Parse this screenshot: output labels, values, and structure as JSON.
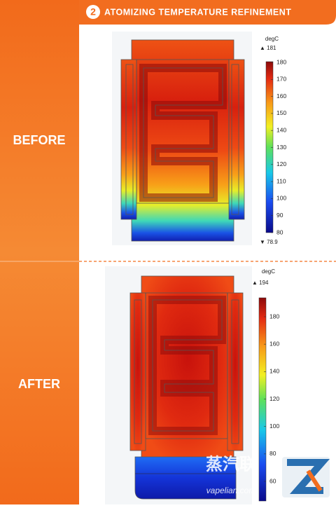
{
  "header": {
    "number": "2",
    "title": "ATOMIZING TEMPERATURE REFINEMENT"
  },
  "panels": [
    {
      "label": "BEFORE",
      "unit": "degC",
      "max": "▲ 181",
      "min": "▼ 78.9",
      "ticks": [
        180,
        170,
        160,
        150,
        140,
        130,
        120,
        110,
        100,
        90,
        80
      ]
    },
    {
      "label": "AFTER",
      "unit": "degC",
      "max": "▲ 194",
      "ticks": [
        180,
        160,
        140,
        120,
        100,
        80,
        60
      ]
    }
  ],
  "watermark": {
    "brand": "蒸汽联",
    "site": "vapelian.com"
  }
}
